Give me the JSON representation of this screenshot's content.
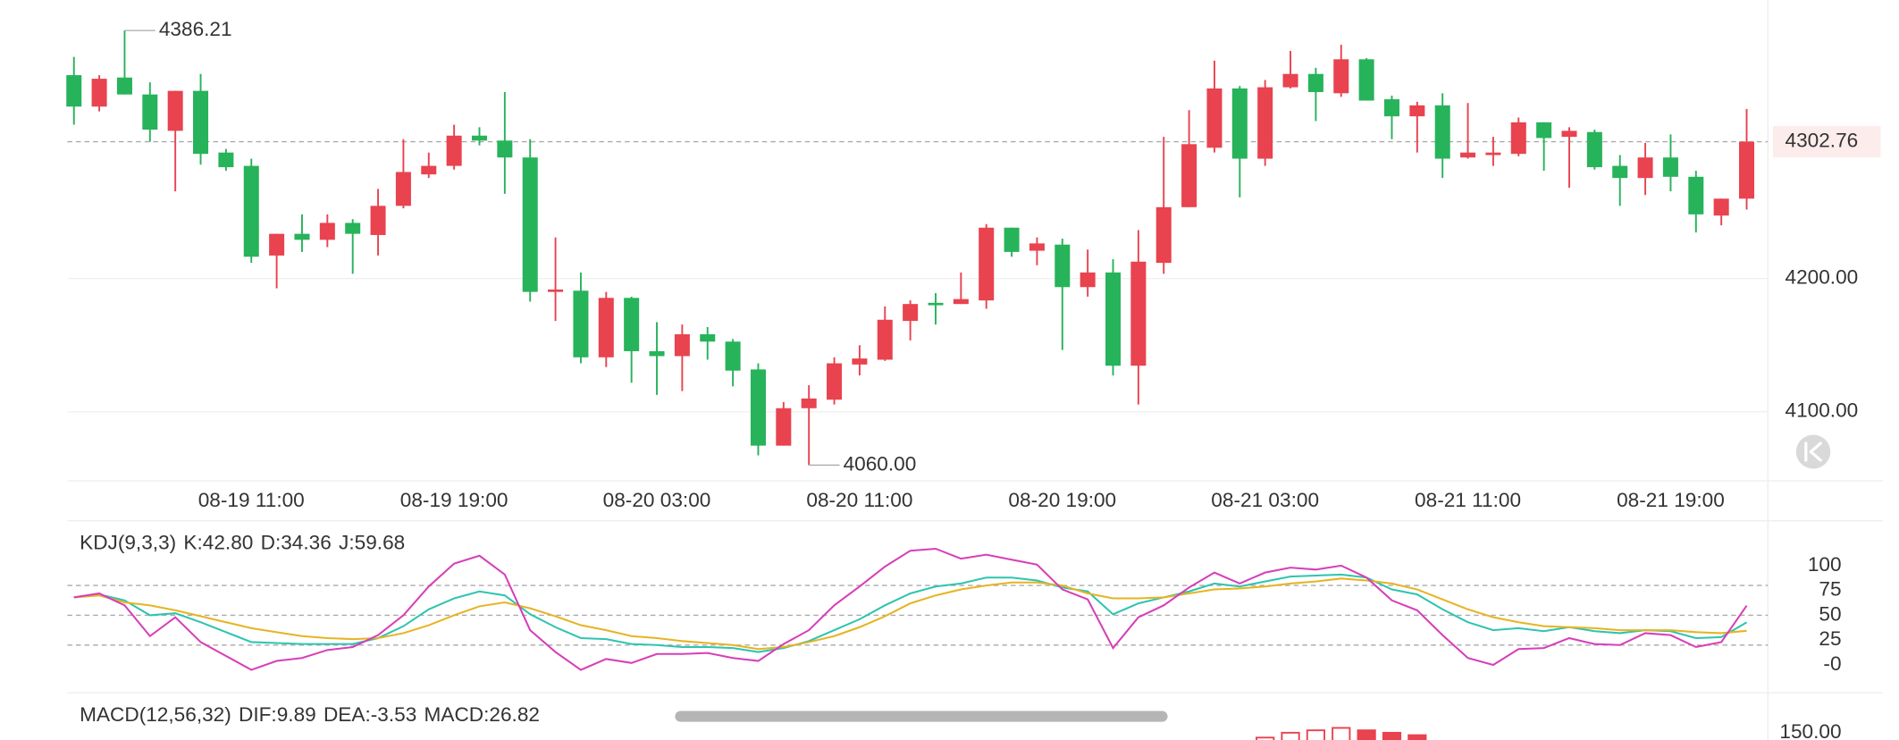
{
  "chart_data": [
    {
      "type": "candlestick",
      "categories": [
        null,
        null,
        null,
        null,
        null,
        null,
        null,
        "08-19 11:00",
        null,
        null,
        null,
        null,
        null,
        null,
        null,
        "08-19 19:00",
        null,
        null,
        null,
        null,
        null,
        null,
        null,
        "08-20 03:00",
        null,
        null,
        null,
        null,
        null,
        null,
        null,
        "08-20 11:00",
        null,
        null,
        null,
        null,
        null,
        null,
        null,
        "08-20 19:00",
        null,
        null,
        null,
        null,
        null,
        null,
        null,
        "08-21 03:00",
        null,
        null,
        null,
        null,
        null,
        null,
        null,
        "08-21 11:00",
        null,
        null,
        null,
        null,
        null,
        null,
        null,
        "08-21 19:00",
        null,
        null,
        null
      ],
      "open": [
        4352.7,
        4329.1,
        4350.9,
        4338.2,
        4310.9,
        4340.9,
        4294.6,
        4284.6,
        4217.3,
        4233.6,
        4229.1,
        4241.8,
        4232.7,
        4254.6,
        4278.2,
        4284.6,
        4307.3,
        4303.6,
        4290.9,
        4190.0,
        4190.9,
        4140.9,
        4185.5,
        4145.5,
        4141.8,
        4158.2,
        4152.7,
        4131.8,
        4074.6,
        4102.7,
        4109.1,
        4135.5,
        4139.1,
        4168.2,
        4181.8,
        4180.9,
        4183.6,
        4238.2,
        4220.9,
        4225.5,
        4193.6,
        4204.6,
        4134.6,
        4211.8,
        4253.6,
        4298.2,
        4342.7,
        4290.0,
        4343.6,
        4353.6,
        4339.1,
        4364.6,
        4334.6,
        4321.8,
        4330.0,
        4290.9,
        4292.7,
        4293.6,
        4317.3,
        4306.4,
        4310.0,
        4284.6,
        4275.5,
        4290.9,
        4276.4,
        4247.3,
        4260.0
      ],
      "high": [
        4366.4,
        4352.7,
        4386.21,
        4347.3,
        4340.9,
        4353.6,
        4297.3,
        4290.0,
        4233.6,
        4248.2,
        4248.2,
        4244.6,
        4267.3,
        4304.6,
        4294.6,
        4315.5,
        4313.6,
        4340.0,
        4304.6,
        4230.9,
        4204.6,
        4190.0,
        4186.4,
        4167.3,
        4165.5,
        4163.6,
        4154.6,
        4136.4,
        4107.3,
        4120.0,
        4140.9,
        4150.0,
        4179.1,
        4183.6,
        4189.1,
        4204.6,
        4240.9,
        4238.2,
        4230.9,
        4230.0,
        4221.8,
        4214.6,
        4236.4,
        4306.4,
        4326.4,
        4363.6,
        4344.6,
        4349.1,
        4370.9,
        4358.2,
        4375.5,
        4365.5,
        4337.3,
        4332.7,
        4339.1,
        4331.8,
        4306.4,
        4320.9,
        4317.3,
        4313.6,
        4311.8,
        4292.7,
        4301.8,
        4308.2,
        4280.9,
        4260.0,
        4327.3
      ],
      "low": [
        4315.5,
        4325.5,
        4338.2,
        4302.7,
        4265.5,
        4285.5,
        4280.9,
        4211.8,
        4192.7,
        4220.0,
        4223.6,
        4203.6,
        4217.3,
        4252.7,
        4275.5,
        4281.8,
        4300.0,
        4263.6,
        4182.7,
        4168.2,
        4136.4,
        4133.6,
        4121.8,
        4112.7,
        4115.5,
        4139.1,
        4119.1,
        4067.3,
        4074.6,
        4060,
        4105.5,
        4127.3,
        4138.2,
        4153.6,
        4165.5,
        4180.9,
        4177.3,
        4216.4,
        4210.0,
        4146.4,
        4186.4,
        4127.3,
        4105.5,
        4203.6,
        4253.6,
        4294.6,
        4260.9,
        4284.6,
        4342.7,
        4318.2,
        4336.4,
        4333.6,
        4304.6,
        4294.6,
        4275.5,
        4290.0,
        4284.6,
        4291.8,
        4280.9,
        4268.2,
        4281.8,
        4254.6,
        4262.7,
        4265.5,
        4234.6,
        4240.0,
        4251.8
      ],
      "close": [
        4329.1,
        4350.0,
        4338.2,
        4311.8,
        4340.9,
        4293.6,
        4283.6,
        4216.4,
        4233.6,
        4229.1,
        4241.8,
        4233.6,
        4254.6,
        4280.0,
        4284.6,
        4307.3,
        4303.6,
        4290.9,
        4190.0,
        4191.8,
        4140.9,
        4185.5,
        4145.5,
        4141.8,
        4158.2,
        4152.7,
        4130.9,
        4074.6,
        4102.7,
        4110.0,
        4136.4,
        4140.0,
        4169.1,
        4180.9,
        4180.0,
        4184.6,
        4238.2,
        4220.0,
        4226.4,
        4193.6,
        4204.6,
        4134.6,
        4212.7,
        4253.6,
        4300.9,
        4342.7,
        4290.0,
        4343.6,
        4353.6,
        4340.0,
        4364.6,
        4333.6,
        4321.8,
        4330.0,
        4290.0,
        4294.6,
        4294.6,
        4317.3,
        4305.5,
        4310.9,
        4283.6,
        4275.5,
        4290.9,
        4276.4,
        4248.2,
        4260.0,
        4302.76
      ],
      "up_color": "#e8434f",
      "down_color": "#27b35a",
      "ylim": [
        4048.2,
        4409.1
      ],
      "yticks": [
        {
          "value": 4100,
          "label": "4100.00"
        },
        {
          "value": 4200,
          "label": "4200.00"
        }
      ],
      "grid": true,
      "last_price": {
        "value": 4302.76,
        "label": "4302.76"
      },
      "max_label": {
        "value": 4386.21,
        "label": "4386.21"
      },
      "min_label": {
        "value": 4060,
        "label": "4060.00"
      }
    },
    {
      "type": "line",
      "title": "KDJ(9,3,3)",
      "series": [
        {
          "name": "K:42.80",
          "color": "#2ec4b0",
          "values": [
            68,
            71,
            65,
            50,
            52,
            43,
            33,
            23,
            22,
            21,
            21,
            21,
            27,
            39,
            56,
            67,
            74,
            70,
            51,
            38,
            27,
            26,
            21,
            20,
            18,
            18,
            17,
            13,
            17,
            24,
            35,
            46,
            60,
            72,
            79,
            82,
            88,
            88,
            85,
            78,
            74,
            51,
            62,
            68,
            74,
            82,
            79,
            84,
            89,
            90,
            91,
            88,
            76,
            71,
            56,
            43,
            35,
            37,
            34,
            38,
            34,
            32,
            35,
            34,
            27,
            28,
            42.8
          ]
        },
        {
          "name": "D:34.36",
          "color": "#e6b422",
          "values": [
            68,
            70,
            63,
            60,
            55,
            49,
            43,
            37,
            33,
            29,
            27,
            26,
            27,
            32,
            40,
            50,
            59,
            63,
            57,
            49,
            40,
            35,
            29,
            27,
            24,
            22,
            20,
            16,
            18,
            23,
            29,
            38,
            49,
            62,
            70,
            76,
            80,
            83,
            83,
            80,
            72,
            67,
            67,
            68,
            72,
            76,
            77,
            79,
            82,
            84,
            87,
            85,
            82,
            76,
            66,
            56,
            48,
            43,
            39,
            38,
            37,
            35,
            35,
            35,
            33,
            32,
            34.36
          ]
        },
        {
          "name": "J:59.68",
          "color": "#d63fb8",
          "values": [
            68,
            72,
            60,
            29,
            48,
            23,
            9,
            -5,
            4,
            7,
            15,
            18,
            30,
            50,
            79,
            102,
            110,
            91,
            35,
            13,
            -5,
            6,
            2,
            11,
            11,
            12,
            7,
            4,
            21,
            35,
            60,
            79,
            99,
            115,
            117,
            107,
            111,
            106,
            101,
            76,
            66,
            17,
            48,
            60,
            78,
            93,
            82,
            93,
            98,
            96,
            100,
            88,
            65,
            55,
            30,
            7,
            0,
            16,
            17,
            27,
            21,
            20,
            32,
            30,
            18,
            23,
            59.68
          ]
        }
      ],
      "ylim": [
        -25.6,
        142.7
      ],
      "yticks": [
        100,
        75,
        50,
        25,
        {
          "value": 0,
          "label": "-0"
        }
      ],
      "ref_lines": [
        80,
        50,
        20
      ]
    },
    {
      "type": "bar",
      "title": "MACD(12,56,32)",
      "legend": [
        {
          "name": "DIF:9.89",
          "color": "#2ec4b0"
        },
        {
          "name": "DEA:-3.53",
          "color": "#e6b422"
        },
        {
          "name": "MACD:26.82",
          "color": "#d63fb8"
        }
      ],
      "values": [
        null,
        null,
        null,
        null,
        null,
        null,
        null,
        null,
        null,
        null,
        null,
        null,
        null,
        null,
        null,
        null,
        null,
        null,
        null,
        null,
        null,
        null,
        null,
        null,
        null,
        null,
        null,
        null,
        null,
        null,
        null,
        null,
        null,
        null,
        null,
        null,
        null,
        null,
        null,
        null,
        null,
        null,
        null,
        null,
        null,
        null,
        null,
        145,
        149,
        151,
        153,
        151,
        149,
        147,
        null,
        null,
        null,
        null,
        null,
        null,
        null,
        null,
        null,
        null,
        null,
        null,
        null
      ],
      "color": "#e8434f",
      "ylim": [
        143,
        179
      ],
      "yticks": [
        {
          "value": 150,
          "label": "150.00"
        }
      ]
    }
  ]
}
